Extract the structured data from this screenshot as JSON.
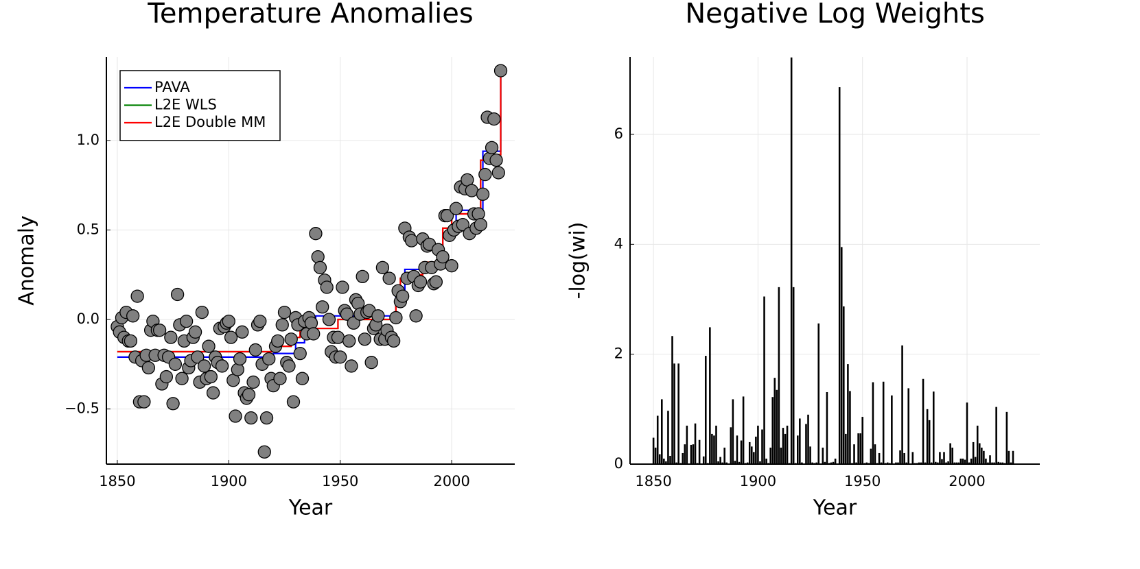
{
  "chart_data": [
    {
      "type": "scatter",
      "title": "Temperature Anomalies",
      "xlabel": "Year",
      "ylabel": "Anomaly",
      "x": [
        1850,
        1851,
        1852,
        1853,
        1854,
        1855,
        1856,
        1857,
        1858,
        1859,
        1860,
        1861,
        1862,
        1863,
        1864,
        1865,
        1866,
        1867,
        1868,
        1869,
        1870,
        1871,
        1872,
        1873,
        1874,
        1875,
        1876,
        1877,
        1878,
        1879,
        1880,
        1881,
        1882,
        1883,
        1884,
        1885,
        1886,
        1887,
        1888,
        1889,
        1890,
        1891,
        1892,
        1893,
        1894,
        1895,
        1896,
        1897,
        1898,
        1899,
        1900,
        1901,
        1902,
        1903,
        1904,
        1905,
        1906,
        1907,
        1908,
        1909,
        1910,
        1911,
        1912,
        1913,
        1914,
        1915,
        1916,
        1917,
        1918,
        1919,
        1920,
        1921,
        1922,
        1923,
        1924,
        1925,
        1926,
        1927,
        1928,
        1929,
        1930,
        1931,
        1932,
        1933,
        1934,
        1935,
        1936,
        1937,
        1938,
        1939,
        1940,
        1941,
        1942,
        1943,
        1944,
        1945,
        1946,
        1947,
        1948,
        1949,
        1950,
        1951,
        1952,
        1953,
        1954,
        1955,
        1956,
        1957,
        1958,
        1959,
        1960,
        1961,
        1962,
        1963,
        1964,
        1965,
        1966,
        1967,
        1968,
        1969,
        1970,
        1971,
        1972,
        1973,
        1974,
        1975,
        1976,
        1977,
        1978,
        1979,
        1980,
        1981,
        1982,
        1983,
        1984,
        1985,
        1986,
        1987,
        1988,
        1989,
        1990,
        1991,
        1992,
        1993,
        1994,
        1995,
        1996,
        1997,
        1998,
        1999,
        2000,
        2001,
        2002,
        2003,
        2004,
        2005,
        2006,
        2007,
        2008,
        2009,
        2010,
        2011,
        2012,
        2013,
        2014,
        2015,
        2016,
        2017,
        2018,
        2019,
        2020,
        2021,
        2022
      ],
      "values": [
        -0.04,
        -0.07,
        0.01,
        -0.1,
        0.04,
        -0.12,
        -0.12,
        0.02,
        -0.21,
        0.13,
        -0.46,
        -0.23,
        -0.46,
        -0.2,
        -0.27,
        -0.06,
        -0.01,
        -0.2,
        -0.06,
        -0.06,
        -0.36,
        -0.2,
        -0.32,
        -0.21,
        -0.1,
        -0.47,
        -0.25,
        0.14,
        -0.03,
        -0.33,
        -0.12,
        -0.01,
        -0.27,
        -0.23,
        -0.1,
        -0.07,
        -0.21,
        -0.35,
        0.04,
        -0.26,
        -0.33,
        -0.15,
        -0.32,
        -0.41,
        -0.21,
        -0.24,
        -0.05,
        -0.26,
        -0.04,
        -0.02,
        -0.01,
        -0.1,
        -0.34,
        -0.54,
        -0.28,
        -0.22,
        -0.07,
        -0.41,
        -0.44,
        -0.42,
        -0.55,
        -0.35,
        -0.17,
        -0.03,
        -0.01,
        -0.25,
        -0.74,
        -0.55,
        -0.22,
        -0.33,
        -0.37,
        -0.15,
        -0.12,
        -0.33,
        -0.03,
        0.04,
        -0.24,
        -0.26,
        -0.11,
        -0.46,
        0.01,
        -0.03,
        -0.19,
        -0.33,
        -0.01,
        -0.08,
        0.01,
        -0.02,
        -0.08,
        0.48,
        0.35,
        0.29,
        0.07,
        0.22,
        0.18,
        0.0,
        -0.18,
        -0.1,
        -0.21,
        -0.1,
        -0.21,
        0.18,
        0.05,
        0.03,
        -0.12,
        -0.26,
        -0.02,
        0.11,
        0.09,
        0.03,
        0.24,
        -0.11,
        0.04,
        0.05,
        -0.24,
        -0.05,
        -0.03,
        0.02,
        -0.11,
        0.29,
        -0.11,
        -0.06,
        0.23,
        -0.1,
        -0.12,
        0.01,
        0.16,
        0.1,
        0.13,
        0.51,
        0.23,
        0.46,
        0.44,
        0.24,
        0.02,
        0.19,
        0.21,
        0.45,
        0.29,
        0.41,
        0.42,
        0.29,
        0.2,
        0.21,
        0.39,
        0.31,
        0.35,
        0.58,
        0.58,
        0.47,
        0.3,
        0.5,
        0.62,
        0.52,
        0.74,
        0.53,
        0.73,
        0.78,
        0.48,
        0.72,
        0.59,
        0.51,
        0.59,
        0.53,
        0.7,
        0.81,
        1.13,
        0.9,
        0.96,
        1.12,
        0.89,
        0.82,
        1.39
      ],
      "color": "#808080",
      "series": [
        {
          "name": "PAVA",
          "color": "#0000ff",
          "x": [
            1850,
            1920,
            1930,
            1934,
            1936,
            1939,
            1975,
            1979,
            1987,
            1994,
            1996,
            2002,
            2014,
            2022
          ],
          "values": [
            -0.21,
            -0.19,
            -0.13,
            -0.08,
            -0.02,
            0.02,
            0.14,
            0.28,
            0.31,
            0.36,
            0.48,
            0.61,
            0.94,
            1.39
          ]
        },
        {
          "name": "L2E WLS",
          "color": "#008000",
          "x": [
            1850,
            1920,
            1928,
            1932,
            1949,
            1975,
            1977,
            1983,
            1987,
            1994,
            1996,
            2000,
            2013,
            2015,
            2022
          ],
          "values": [
            -0.18,
            -0.15,
            -0.1,
            -0.05,
            0.0,
            0.1,
            0.23,
            0.25,
            0.32,
            0.36,
            0.51,
            0.59,
            0.89,
            0.92,
            1.39
          ]
        },
        {
          "name": "L2E Double MM",
          "color": "#ff0000",
          "x": [
            1850,
            1920,
            1928,
            1932,
            1949,
            1975,
            1977,
            1983,
            1987,
            1994,
            1996,
            2000,
            2013,
            2015,
            2022
          ],
          "values": [
            -0.18,
            -0.15,
            -0.1,
            -0.05,
            0.0,
            0.1,
            0.23,
            0.25,
            0.32,
            0.36,
            0.51,
            0.59,
            0.89,
            0.92,
            1.39
          ]
        }
      ],
      "xlim": [
        1845.1,
        2028.3
      ],
      "ylim": [
        -0.808,
        1.467
      ],
      "xticks": [
        1850,
        1900,
        1950,
        2000
      ],
      "yticks": [
        {
          "value": -0.5,
          "label": "−0.5"
        },
        {
          "value": 0,
          "label": "0.0"
        },
        0.5,
        {
          "value": 1,
          "label": "1.0"
        }
      ],
      "grid": true,
      "legend": "top-left"
    },
    {
      "type": "bar",
      "title": "Negative Log Weights",
      "xlabel": "Year",
      "ylabel": "-log(wi)",
      "x": [
        1850,
        1851,
        1852,
        1853,
        1854,
        1855,
        1856,
        1857,
        1858,
        1859,
        1860,
        1861,
        1862,
        1863,
        1864,
        1865,
        1866,
        1867,
        1868,
        1869,
        1870,
        1871,
        1872,
        1873,
        1874,
        1875,
        1876,
        1877,
        1878,
        1879,
        1880,
        1881,
        1882,
        1883,
        1884,
        1885,
        1886,
        1887,
        1888,
        1889,
        1890,
        1891,
        1892,
        1893,
        1894,
        1895,
        1896,
        1897,
        1898,
        1899,
        1900,
        1901,
        1902,
        1903,
        1904,
        1905,
        1906,
        1907,
        1908,
        1909,
        1910,
        1911,
        1912,
        1913,
        1914,
        1915,
        1916,
        1917,
        1918,
        1919,
        1920,
        1921,
        1922,
        1923,
        1924,
        1925,
        1926,
        1927,
        1928,
        1929,
        1930,
        1931,
        1932,
        1933,
        1934,
        1935,
        1936,
        1937,
        1938,
        1939,
        1940,
        1941,
        1942,
        1943,
        1944,
        1945,
        1946,
        1947,
        1948,
        1949,
        1950,
        1951,
        1952,
        1953,
        1954,
        1955,
        1956,
        1957,
        1958,
        1959,
        1960,
        1961,
        1962,
        1963,
        1964,
        1965,
        1966,
        1967,
        1968,
        1969,
        1970,
        1971,
        1972,
        1973,
        1974,
        1975,
        1976,
        1977,
        1978,
        1979,
        1980,
        1981,
        1982,
        1983,
        1984,
        1985,
        1986,
        1987,
        1988,
        1989,
        1990,
        1991,
        1992,
        1993,
        1994,
        1995,
        1996,
        1997,
        1998,
        1999,
        2000,
        2001,
        2002,
        2003,
        2004,
        2005,
        2006,
        2007,
        2008,
        2009,
        2010,
        2011,
        2012,
        2013,
        2014,
        2015,
        2016,
        2017,
        2018,
        2019,
        2020,
        2021,
        2022
      ],
      "values": [
        0.48,
        0.3,
        0.88,
        0.18,
        1.18,
        0.1,
        0.05,
        0.97,
        0.15,
        2.33,
        1.83,
        0.03,
        1.83,
        0.02,
        0.2,
        0.36,
        0.7,
        0.0,
        0.35,
        0.36,
        0.74,
        0.02,
        0.44,
        0.01,
        0.14,
        1.97,
        0.02,
        2.49,
        0.55,
        0.52,
        0.7,
        0.05,
        0.13,
        0.03,
        0.3,
        0.03,
        0.01,
        0.67,
        1.18,
        0.06,
        0.52,
        0.04,
        0.43,
        1.23,
        0.02,
        0.03,
        0.4,
        0.32,
        0.22,
        0.5,
        0.7,
        0.05,
        0.63,
        3.05,
        0.1,
        0.02,
        0.3,
        1.22,
        1.57,
        1.35,
        3.22,
        0.3,
        0.66,
        0.55,
        0.7,
        0.02,
        7.4,
        3.22,
        0.02,
        0.52,
        0.83,
        0.03,
        0.01,
        0.73,
        0.9,
        0.32,
        0.03,
        0.02,
        0.03,
        2.56,
        0.01,
        0.3,
        0.04,
        1.31,
        0.02,
        0.03,
        0.04,
        0.1,
        0.01,
        6.86,
        3.95,
        2.87,
        0.55,
        1.82,
        1.33,
        0.02,
        0.36,
        0.03,
        0.56,
        0.56,
        0.86,
        0.02,
        0.03,
        0.02,
        0.28,
        1.49,
        0.36,
        0.02,
        0.2,
        0.03,
        1.5,
        0.02,
        0.03,
        0.02,
        1.25,
        0.01,
        0.03,
        0.03,
        0.25,
        2.16,
        0.2,
        0.03,
        1.38,
        0.01,
        0.22,
        0.02,
        0.02,
        0.03,
        0.03,
        1.55,
        0.03,
        1.0,
        0.8,
        0.03,
        1.32,
        0.04,
        0.03,
        0.22,
        0.09,
        0.22,
        0.03,
        0.05,
        0.38,
        0.3,
        0.03,
        0.03,
        0.03,
        0.1,
        0.1,
        0.08,
        1.12,
        0.03,
        0.1,
        0.4,
        0.13,
        0.7,
        0.38,
        0.3,
        0.24,
        0.1,
        0.03,
        0.16,
        0.03,
        0.03,
        1.04,
        0.04,
        0.03,
        0.03,
        0.02,
        0.95,
        0.24,
        0.03,
        0.24
      ],
      "color": "#000000",
      "xlim": [
        1838.8,
        2034.8
      ],
      "ylim": [
        0,
        7.41
      ],
      "xticks": [
        1850,
        1900,
        1950,
        2000
      ],
      "yticks": [
        0,
        2,
        4,
        6
      ],
      "grid": true
    }
  ]
}
